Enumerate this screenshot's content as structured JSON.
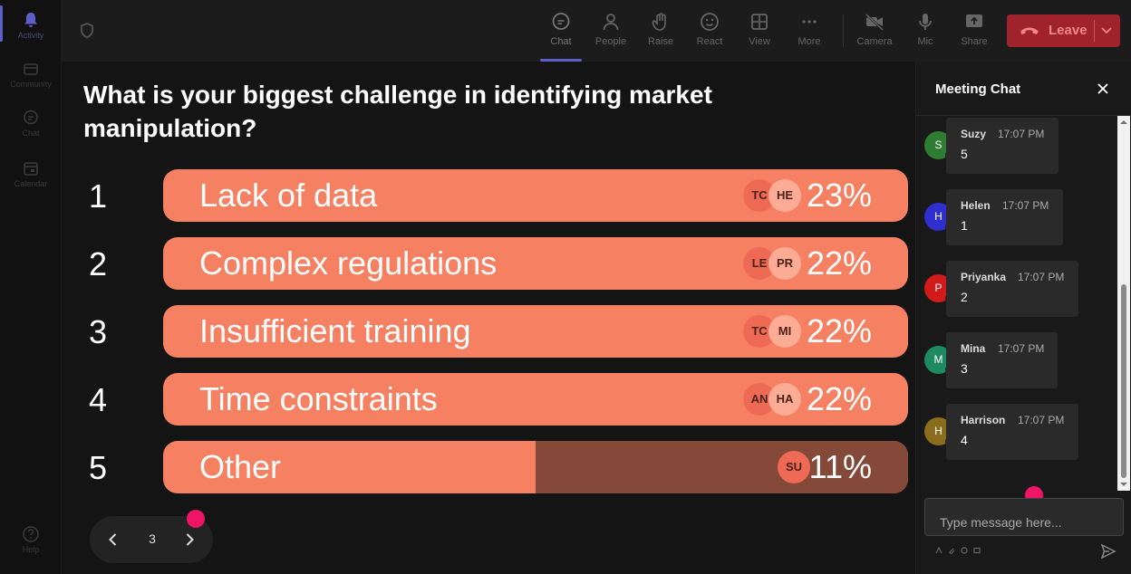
{
  "rail": {
    "items": [
      {
        "label": "Activity",
        "icon": "bell-icon"
      },
      {
        "label": "Community",
        "icon": "community-icon"
      },
      {
        "label": "Chat",
        "icon": "chat-icon"
      },
      {
        "label": "Calendar",
        "icon": "calendar-icon"
      },
      {
        "label": "Help",
        "icon": "help-icon"
      }
    ]
  },
  "toolbar": {
    "chat": "Chat",
    "people": "People",
    "raise": "Raise",
    "react": "React",
    "view": "View",
    "more": "More",
    "camera": "Camera",
    "mic": "Mic",
    "share": "Share",
    "leave": "Leave"
  },
  "poll": {
    "question": "What is your biggest challenge in identifying market manipulation?",
    "options": [
      {
        "num": "1",
        "label": "Lack of data",
        "percent": "23%",
        "fill": 1.0,
        "avatars": [
          "TC",
          "HE"
        ]
      },
      {
        "num": "2",
        "label": "Complex regulations",
        "percent": "22%",
        "fill": 1.0,
        "avatars": [
          "LE",
          "PR"
        ]
      },
      {
        "num": "3",
        "label": "Insufficient training",
        "percent": "22%",
        "fill": 1.0,
        "avatars": [
          "TC",
          "MI"
        ]
      },
      {
        "num": "4",
        "label": "Time constraints",
        "percent": "22%",
        "fill": 1.0,
        "avatars": [
          "AN",
          "HA"
        ]
      },
      {
        "num": "5",
        "label": "Other",
        "percent": "11%",
        "fill": 0.5,
        "avatars": [
          "SU"
        ]
      }
    ]
  },
  "pager": {
    "page": "3"
  },
  "chat": {
    "title": "Meeting Chat",
    "messages": [
      {
        "initial": "S",
        "name": "Suzy",
        "time": "17:07 PM",
        "text": "5",
        "color": "#2e7d32"
      },
      {
        "initial": "H",
        "name": "Helen",
        "time": "17:07 PM",
        "text": "1",
        "color": "#2f2fd0"
      },
      {
        "initial": "P",
        "name": "Priyanka",
        "time": "17:07 PM",
        "text": "2",
        "color": "#d11a1a"
      },
      {
        "initial": "M",
        "name": "Mina",
        "time": "17:07 PM",
        "text": "3",
        "color": "#1e8a63"
      },
      {
        "initial": "H",
        "name": "Harrison",
        "time": "17:07 PM",
        "text": "4",
        "color": "#8a6d1c"
      }
    ],
    "input_placeholder": "Type message here..."
  },
  "colors": {
    "bar": "#f58162",
    "bar_remainder": "#854939",
    "leave": "#a0222a",
    "accent": "#5b5fc7",
    "cursor_dot": "#f01466"
  }
}
